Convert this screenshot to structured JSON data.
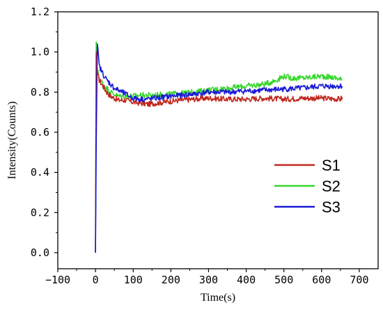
{
  "chart_data": {
    "type": "line",
    "title": "",
    "xlabel": "Time(s)",
    "ylabel": "Intensity(Counts)",
    "xlim": [
      -100,
      750
    ],
    "ylim": [
      -0.08,
      1.2
    ],
    "xticks": [
      -100,
      0,
      100,
      200,
      300,
      400,
      500,
      600,
      700
    ],
    "yticks": [
      0.0,
      0.2,
      0.4,
      0.6,
      0.8,
      1.0,
      1.2
    ],
    "xtick_labels": [
      "−100",
      "0",
      "100",
      "200",
      "300",
      "400",
      "500",
      "600",
      "700"
    ],
    "ytick_labels": [
      "0.0",
      "0.2",
      "0.4",
      "0.6",
      "0.8",
      "1.0",
      "1.2"
    ],
    "grid": false,
    "legend_position": "right",
    "series": [
      {
        "name": "S1",
        "color": "#c0281e",
        "x": [
          0,
          2,
          4,
          10,
          20,
          30,
          40,
          50,
          60,
          80,
          100,
          120,
          140,
          160,
          180,
          200,
          230,
          260,
          300,
          350,
          400,
          450,
          500,
          550,
          600,
          650,
          655
        ],
        "y": [
          0.0,
          1.0,
          0.9,
          0.86,
          0.83,
          0.8,
          0.78,
          0.77,
          0.76,
          0.76,
          0.75,
          0.745,
          0.74,
          0.745,
          0.75,
          0.755,
          0.76,
          0.765,
          0.77,
          0.765,
          0.765,
          0.77,
          0.765,
          0.77,
          0.77,
          0.765,
          0.775
        ]
      },
      {
        "name": "S2",
        "color": "#35d62a",
        "x": [
          0,
          2,
          4,
          10,
          20,
          30,
          40,
          50,
          60,
          80,
          100,
          120,
          140,
          160,
          180,
          200,
          230,
          260,
          300,
          350,
          400,
          450,
          480,
          500,
          520,
          550,
          600,
          640,
          655
        ],
        "y": [
          0.0,
          1.05,
          0.92,
          0.87,
          0.84,
          0.82,
          0.8,
          0.79,
          0.78,
          0.78,
          0.78,
          0.785,
          0.785,
          0.785,
          0.79,
          0.79,
          0.795,
          0.8,
          0.81,
          0.82,
          0.83,
          0.84,
          0.86,
          0.88,
          0.87,
          0.87,
          0.88,
          0.87,
          0.86
        ]
      },
      {
        "name": "S3",
        "color": "#1a1ad6",
        "x": [
          0,
          2,
          5,
          10,
          20,
          30,
          40,
          50,
          60,
          80,
          100,
          120,
          140,
          160,
          180,
          200,
          230,
          260,
          300,
          350,
          400,
          450,
          500,
          550,
          600,
          640,
          655
        ],
        "y": [
          0.0,
          0.55,
          1.04,
          0.93,
          0.89,
          0.86,
          0.84,
          0.82,
          0.81,
          0.79,
          0.77,
          0.765,
          0.765,
          0.77,
          0.775,
          0.78,
          0.785,
          0.79,
          0.8,
          0.8,
          0.805,
          0.81,
          0.815,
          0.82,
          0.83,
          0.83,
          0.83
        ]
      }
    ]
  }
}
